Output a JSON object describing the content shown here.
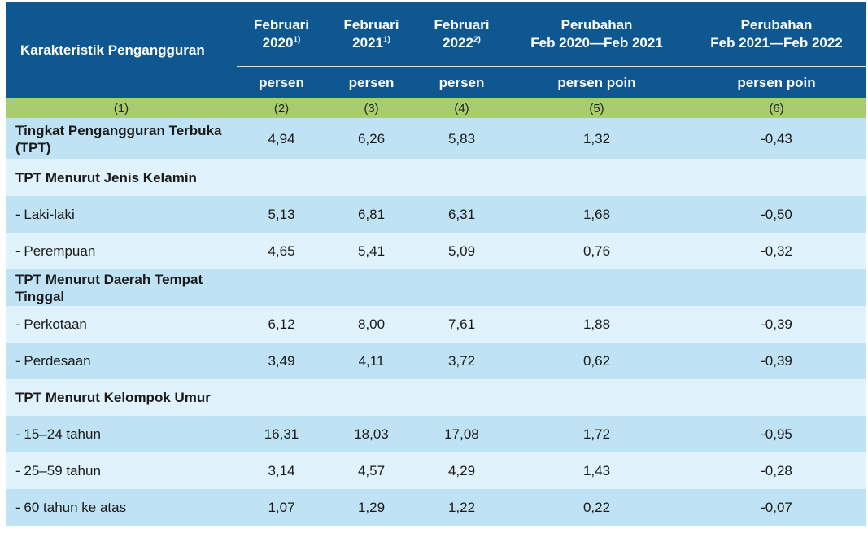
{
  "header": {
    "characteristic": "Karakteristik Pengangguran",
    "columns": [
      {
        "line1": "Februari",
        "line2": "2020",
        "sup": "1)"
      },
      {
        "line1": "Februari",
        "line2": "2021",
        "sup": "1)"
      },
      {
        "line1": "Februari",
        "line2": "2022",
        "sup": "2)"
      },
      {
        "line1": "Perubahan",
        "line2": "Feb 2020—Feb 2021",
        "sup": ""
      },
      {
        "line1": "Perubahan",
        "line2": "Feb 2021—Feb 2022",
        "sup": ""
      }
    ],
    "units": [
      "persen",
      "persen",
      "persen",
      "persen poin",
      "persen poin"
    ],
    "column_numbers": [
      "(1)",
      "(2)",
      "(3)",
      "(4)",
      "(5)",
      "(6)"
    ]
  },
  "rows": [
    {
      "label": "Tingkat Pengangguran Terbuka  (TPT)",
      "bold": true,
      "values": [
        "4,94",
        "6,26",
        "5,83",
        "1,32",
        "-0,43"
      ]
    },
    {
      "label": "TPT Menurut Jenis Kelamin",
      "bold": true,
      "values": [
        "",
        "",
        "",
        "",
        ""
      ]
    },
    {
      "label": "- Laki-laki",
      "bold": false,
      "values": [
        "5,13",
        "6,81",
        "6,31",
        "1,68",
        "-0,50"
      ]
    },
    {
      "label": "- Perempuan",
      "bold": false,
      "values": [
        "4,65",
        "5,41",
        "5,09",
        "0,76",
        "-0,32"
      ]
    },
    {
      "label": "TPT Menurut Daerah Tempat Tinggal",
      "bold": true,
      "values": [
        "",
        "",
        "",
        "",
        ""
      ]
    },
    {
      "label": "- Perkotaan",
      "bold": false,
      "values": [
        "6,12",
        "8,00",
        "7,61",
        "1,88",
        "-0,39"
      ]
    },
    {
      "label": "- Perdesaan",
      "bold": false,
      "values": [
        "3,49",
        "4,11",
        "3,72",
        "0,62",
        "-0,39"
      ]
    },
    {
      "label": "TPT Menurut Kelompok Umur",
      "bold": true,
      "values": [
        "",
        "",
        "",
        "",
        ""
      ]
    },
    {
      "label": "- 15–24 tahun",
      "bold": false,
      "values": [
        "16,31",
        "18,03",
        "17,08",
        "1,72",
        "-0,95"
      ]
    },
    {
      "label": "- 25–59 tahun",
      "bold": false,
      "values": [
        "3,14",
        "4,57",
        "4,29",
        "1,43",
        "-0,28"
      ]
    },
    {
      "label": "- 60 tahun ke atas",
      "bold": false,
      "values": [
        "1,07",
        "1,29",
        "1,22",
        "0,22",
        "-0,07"
      ]
    }
  ]
}
